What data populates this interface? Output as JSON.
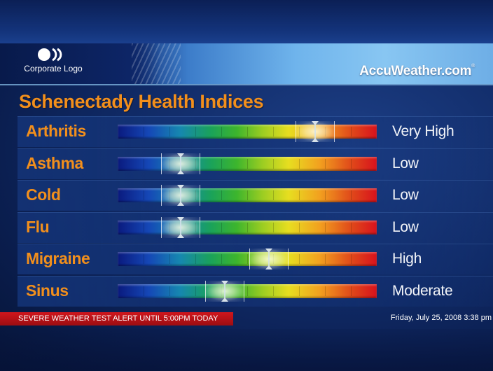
{
  "header": {
    "corporate_logo_text": "Corporate Logo",
    "brand": "AccuWeather.com",
    "brand_mark": "®"
  },
  "title": "Schenectady Health Indices",
  "colors": {
    "title": "#f28f1c",
    "label": "#f28f1c",
    "level_text": "#f2f4f8",
    "alert_bg": "#d0161c"
  },
  "indices": [
    {
      "name": "Arthritis",
      "level": "Very High",
      "value": 0.76
    },
    {
      "name": "Asthma",
      "level": "Low",
      "value": 0.24
    },
    {
      "name": "Cold",
      "level": "Low",
      "value": 0.24
    },
    {
      "name": "Flu",
      "level": "Low",
      "value": 0.24
    },
    {
      "name": "Migraine",
      "level": "High",
      "value": 0.58
    },
    {
      "name": "Sinus",
      "level": "Moderate",
      "value": 0.41
    }
  ],
  "ticker": {
    "alert": "SEVERE WEATHER TEST ALERT UNTIL 5:00PM TODAY",
    "datetime": "Friday, July 25, 2008 3:38 pm"
  }
}
